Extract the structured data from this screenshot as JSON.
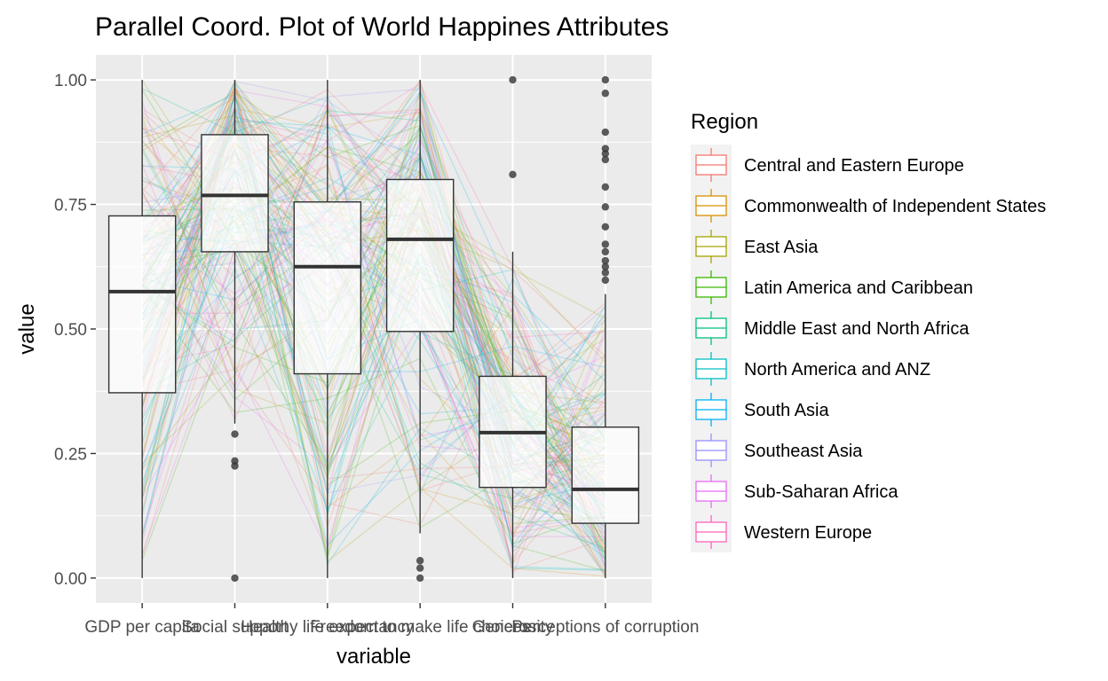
{
  "chart_data": {
    "type": "boxplot",
    "title": "Parallel Coord. Plot of World Happines Attributes",
    "xlabel": "variable",
    "ylabel": "value",
    "ylim": [
      -0.05,
      1.05
    ],
    "y_ticks": [
      "0.00",
      "0.25",
      "0.50",
      "0.75",
      "1.00"
    ],
    "grid": true,
    "categories": [
      "GDP per capita",
      "Social support",
      "Healthy life expectancy",
      "Freedom to make life choices",
      "Generosity",
      "Perceptions of corruption"
    ],
    "boxes": [
      {
        "variable": "GDP per capita",
        "lower_whisker": 0.0,
        "q1": 0.372,
        "median": 0.575,
        "q3": 0.727,
        "upper_whisker": 1.0,
        "outliers": []
      },
      {
        "variable": "Social support",
        "lower_whisker": 0.31,
        "q1": 0.655,
        "median": 0.768,
        "q3": 0.89,
        "upper_whisker": 1.0,
        "outliers": [
          0.289,
          0.235,
          0.225,
          0.0
        ]
      },
      {
        "variable": "Healthy life expectancy",
        "lower_whisker": 0.0,
        "q1": 0.41,
        "median": 0.625,
        "q3": 0.755,
        "upper_whisker": 1.0,
        "outliers": []
      },
      {
        "variable": "Freedom to make life choices",
        "lower_whisker": 0.09,
        "q1": 0.495,
        "median": 0.68,
        "q3": 0.8,
        "upper_whisker": 1.0,
        "outliers": [
          0.035,
          0.02,
          0.0
        ]
      },
      {
        "variable": "Generosity",
        "lower_whisker": 0.0,
        "q1": 0.182,
        "median": 0.292,
        "q3": 0.405,
        "upper_whisker": 0.655,
        "outliers": [
          1.0,
          0.81
        ]
      },
      {
        "variable": "Perceptions of corruption",
        "lower_whisker": 0.0,
        "q1": 0.11,
        "median": 0.178,
        "q3": 0.303,
        "upper_whisker": 0.57,
        "outliers": [
          1.0,
          0.973,
          0.895,
          0.862,
          0.852,
          0.84,
          0.785,
          0.745,
          0.705,
          0.67,
          0.655,
          0.637,
          0.625,
          0.613,
          0.598
        ]
      }
    ],
    "legend": {
      "title": "Region",
      "position": "right",
      "entries": [
        {
          "name": "Central and Eastern Europe",
          "color": "#F8766D"
        },
        {
          "name": "Commonwealth of Independent States",
          "color": "#D89000"
        },
        {
          "name": "East Asia",
          "color": "#A3A500"
        },
        {
          "name": "Latin America and Caribbean",
          "color": "#39B600"
        },
        {
          "name": "Middle East and North Africa",
          "color": "#00BF7D"
        },
        {
          "name": "North America and ANZ",
          "color": "#00BFC4"
        },
        {
          "name": "South Asia",
          "color": "#00B0F6"
        },
        {
          "name": "Southeast Asia",
          "color": "#9590FF"
        },
        {
          "name": "Sub-Saharan Africa",
          "color": "#E76BF3"
        },
        {
          "name": "Western Europe",
          "color": "#FF62BC"
        }
      ]
    },
    "colors": {
      "panel_background": "#EBEBEB",
      "grid": "#FFFFFF",
      "box_fill": "#FFFFFF",
      "box_line": "#333333",
      "outlier": "#333333"
    }
  }
}
